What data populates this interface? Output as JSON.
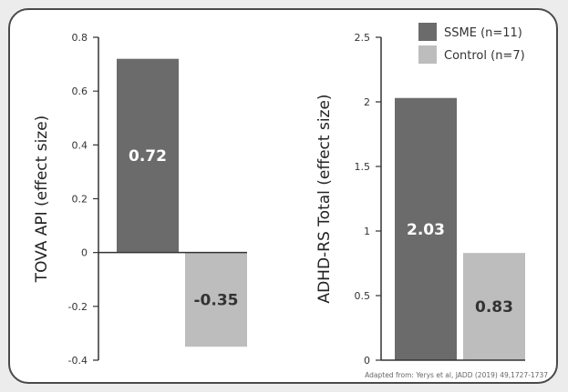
{
  "colors": {
    "ssme": "#6b6b6b",
    "control": "#bdbdbd",
    "label_on_dark": "#ffffff",
    "label_on_light": "#333333",
    "axis": "#333333"
  },
  "legend": {
    "position": "top-right",
    "items": [
      {
        "label": "SSME (n=11)",
        "color": "#6b6b6b"
      },
      {
        "label": "Control (n=7)",
        "color": "#bdbdbd"
      }
    ]
  },
  "source_note": "Adapted from: Yerys et al, JADD (2019) 49,1727-1737",
  "chart_data": [
    {
      "type": "bar",
      "xlabel": "",
      "ylabel": "TOVA API  (effect size)",
      "ylim": [
        -0.4,
        0.8
      ],
      "yticks": [
        0.8,
        0.6,
        0.4,
        0.2,
        0,
        -0.2,
        -0.4
      ],
      "ytick_labels": [
        "0.8",
        "0.6",
        "0.4",
        "0.2",
        "0",
        "-0.2",
        "-0.4"
      ],
      "series": [
        {
          "name": "SSME (n=11)",
          "values": [
            0.72
          ],
          "labels": [
            "0.72"
          ]
        },
        {
          "name": "Control (n=7)",
          "values": [
            -0.35
          ],
          "labels": [
            "-0.35"
          ]
        }
      ],
      "grid": false
    },
    {
      "type": "bar",
      "xlabel": "",
      "ylabel": "ADHD-RS Total (effect size)",
      "ylim": [
        0,
        2.5
      ],
      "yticks": [
        2.5,
        2,
        1.5,
        1,
        0.5,
        0
      ],
      "ytick_labels": [
        "2.5",
        "2",
        "1.5",
        "1",
        "0.5",
        "0"
      ],
      "series": [
        {
          "name": "SSME (n=11)",
          "values": [
            2.03
          ],
          "labels": [
            "2.03"
          ]
        },
        {
          "name": "Control (n=7)",
          "values": [
            0.83
          ],
          "labels": [
            "0.83"
          ]
        }
      ],
      "grid": false
    }
  ]
}
